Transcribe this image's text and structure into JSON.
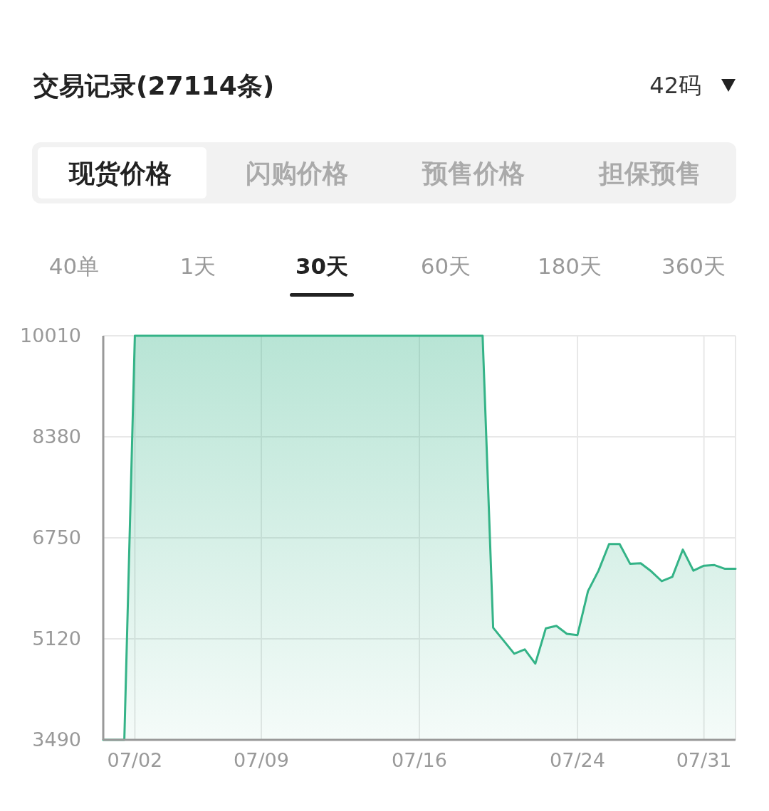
{
  "chart_data": {
    "type": "area",
    "title": "交易记录(27114条)",
    "annotations": [
      "42码",
      "现货价格",
      "闪购价格",
      "预售价格",
      "担保预售",
      "40单",
      "1天",
      "30天",
      "60天",
      "180天",
      "360天"
    ],
    "categories": [
      null,
      null,
      null,
      "07/02",
      null,
      null,
      null,
      null,
      null,
      null,
      null,
      null,
      null,
      null,
      null,
      "07/09",
      null,
      null,
      null,
      null,
      null,
      null,
      null,
      null,
      null,
      null,
      null,
      null,
      null,
      null,
      "07/16",
      null,
      null,
      null,
      null,
      null,
      null,
      null,
      null,
      null,
      null,
      null,
      null,
      null,
      null,
      "07/24",
      null,
      null,
      null,
      null,
      null,
      null,
      null,
      null,
      null,
      null,
      null,
      "07/31",
      null,
      null,
      null
    ],
    "series": [
      {
        "color": "#34b387",
        "values": [
          3490,
          3490,
          3490,
          10010,
          10010,
          10010,
          10010,
          10010,
          10010,
          10010,
          10010,
          10010,
          10010,
          10010,
          10010,
          10010,
          10010,
          10010,
          10010,
          10010,
          10010,
          10010,
          10010,
          10010,
          10010,
          10010,
          10010,
          10010,
          10010,
          10010,
          10010,
          10010,
          10010,
          10010,
          10010,
          10010,
          10010,
          5300,
          5090,
          4880,
          4950,
          4720,
          5290,
          5330,
          5200,
          5180,
          5890,
          6220,
          6650,
          6650,
          6330,
          6340,
          6210,
          6050,
          6120,
          6560,
          6220,
          6300,
          6310,
          6250,
          6250
        ]
      }
    ],
    "ylim": [
      3490,
      10010
    ],
    "yticks": [
      3490,
      5120,
      6750,
      8380,
      10010
    ],
    "grid": true
  }
}
